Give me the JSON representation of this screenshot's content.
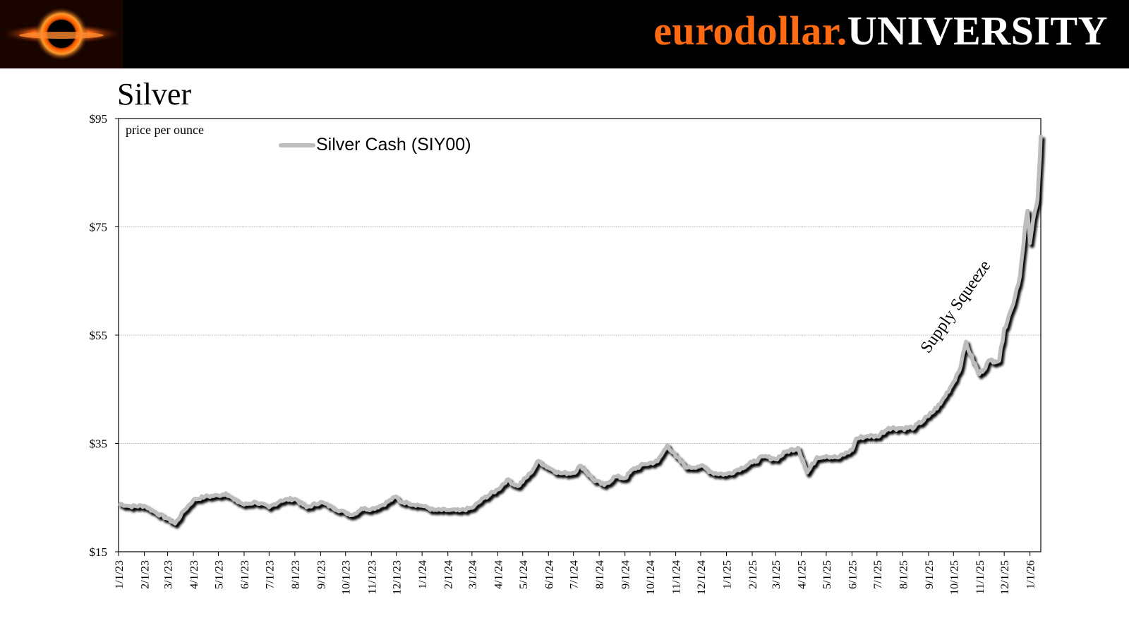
{
  "header": {
    "brand_part1": "eurodollar.",
    "brand_part2": "UNIVERSITY",
    "accent_color": "#ff6a13",
    "logo_icon": "black-hole-logo-icon"
  },
  "chart_data": {
    "type": "line",
    "title": "Silver",
    "ylabel": "price per ounce",
    "ylim": [
      15,
      95
    ],
    "yticks": [
      15,
      35,
      55,
      75,
      95
    ],
    "ytick_labels": [
      "$15",
      "$35",
      "$55",
      "$75",
      "$95"
    ],
    "grid": true,
    "legend_position": "top-left",
    "x_tick_labels": [
      "1/1/23",
      "2/1/23",
      "3/1/23",
      "4/1/23",
      "5/1/23",
      "6/1/23",
      "7/1/23",
      "8/1/23",
      "9/1/23",
      "10/1/23",
      "11/1/23",
      "12/1/23",
      "1/1/24",
      "2/1/24",
      "3/1/24",
      "4/1/24",
      "5/1/24",
      "6/1/24",
      "7/1/24",
      "8/1/24",
      "9/1/24",
      "10/1/24",
      "11/1/24",
      "12/1/24",
      "1/1/25",
      "2/1/25",
      "3/1/25",
      "4/1/25",
      "5/1/25",
      "6/1/25",
      "7/1/25",
      "8/1/25",
      "9/1/25",
      "10/1/25",
      "11/1/25",
      "12/1/25",
      "1/1/26"
    ],
    "x_range": [
      "2023-01-01",
      "2026-01-14"
    ],
    "annotation": "Supply Squeeze",
    "series": [
      {
        "name": "Silver Cash (SIY00)",
        "color": "#bdbdbd",
        "shadow_color": "#000000",
        "x": [
          "2023-01-01",
          "2023-01-15",
          "2023-02-01",
          "2023-02-15",
          "2023-03-01",
          "2023-03-10",
          "2023-03-20",
          "2023-04-01",
          "2023-04-15",
          "2023-05-01",
          "2023-05-10",
          "2023-05-20",
          "2023-06-01",
          "2023-06-15",
          "2023-07-01",
          "2023-07-15",
          "2023-08-01",
          "2023-08-15",
          "2023-09-01",
          "2023-09-15",
          "2023-10-01",
          "2023-10-10",
          "2023-10-20",
          "2023-11-01",
          "2023-11-15",
          "2023-12-01",
          "2023-12-05",
          "2023-12-15",
          "2024-01-01",
          "2024-01-15",
          "2024-02-01",
          "2024-02-15",
          "2024-03-01",
          "2024-03-15",
          "2024-04-01",
          "2024-04-12",
          "2024-04-25",
          "2024-05-10",
          "2024-05-20",
          "2024-06-01",
          "2024-06-15",
          "2024-07-01",
          "2024-07-10",
          "2024-07-25",
          "2024-08-07",
          "2024-08-20",
          "2024-09-01",
          "2024-09-10",
          "2024-09-25",
          "2024-10-10",
          "2024-10-22",
          "2024-11-01",
          "2024-11-15",
          "2024-12-01",
          "2024-12-15",
          "2025-01-01",
          "2025-01-15",
          "2025-02-01",
          "2025-02-15",
          "2025-03-01",
          "2025-03-15",
          "2025-03-28",
          "2025-04-03",
          "2025-04-08",
          "2025-04-20",
          "2025-05-01",
          "2025-05-15",
          "2025-06-01",
          "2025-06-06",
          "2025-06-20",
          "2025-07-01",
          "2025-07-15",
          "2025-08-01",
          "2025-08-15",
          "2025-09-01",
          "2025-09-15",
          "2025-10-01",
          "2025-10-10",
          "2025-10-16",
          "2025-10-21",
          "2025-11-01",
          "2025-11-14",
          "2025-11-25",
          "2025-12-01",
          "2025-12-10",
          "2025-12-20",
          "2025-12-26",
          "2025-12-29",
          "2026-01-01",
          "2026-01-07",
          "2026-01-10",
          "2026-01-13",
          "2026-01-14"
        ],
        "y": [
          23.9,
          23.4,
          23.5,
          22.2,
          21.1,
          20.2,
          22.5,
          24.6,
          25.2,
          25.4,
          25.8,
          24.6,
          23.7,
          24.2,
          23.2,
          24.5,
          24.8,
          23.2,
          24.2,
          23.2,
          22.2,
          21.8,
          23.0,
          22.9,
          23.7,
          25.2,
          24.3,
          24.0,
          23.5,
          22.7,
          22.7,
          22.6,
          23.1,
          24.9,
          26.5,
          28.3,
          27.1,
          29.5,
          31.8,
          30.5,
          29.5,
          29.6,
          30.9,
          28.3,
          27.3,
          28.9,
          28.6,
          30.2,
          31.2,
          31.7,
          34.7,
          32.6,
          30.5,
          30.9,
          29.6,
          29.3,
          30.2,
          31.5,
          32.6,
          32.1,
          33.6,
          34.2,
          31.9,
          29.6,
          32.5,
          32.7,
          32.4,
          33.8,
          35.9,
          36.4,
          36.3,
          37.9,
          37.8,
          38.0,
          40.1,
          42.3,
          46.4,
          49.5,
          53.8,
          51.5,
          47.8,
          50.4,
          50.3,
          56.2,
          60.0,
          66.0,
          75.0,
          78.0,
          72.0,
          78.0,
          80.0,
          88.0,
          92.0
        ]
      }
    ]
  }
}
